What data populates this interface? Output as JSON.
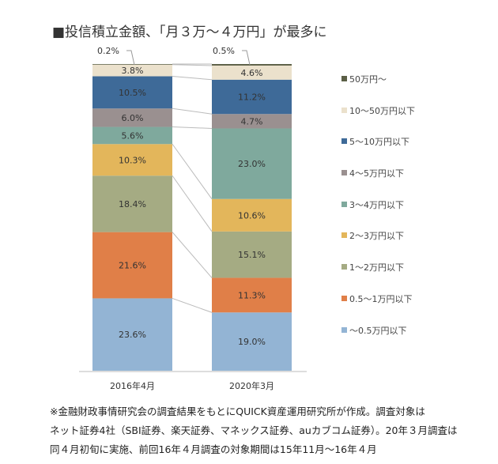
{
  "title": "■投信積立金額、「月３万～４万円」が最多に",
  "chart_data": {
    "type": "bar",
    "stacked": true,
    "percent": true,
    "categories": [
      "2016年4月",
      "2020年3月"
    ],
    "series": [
      {
        "name": "～0.5万円以下",
        "color": "#93b4d4",
        "values": [
          23.6,
          19.0
        ],
        "labels": [
          "23.6%",
          "19.0%"
        ]
      },
      {
        "name": "0.5～1万円以下",
        "color": "#e07f48",
        "values": [
          21.6,
          11.3
        ],
        "labels": [
          "21.6%",
          "11.3%"
        ]
      },
      {
        "name": "1～2万円以下",
        "color": "#a5ab83",
        "values": [
          18.4,
          15.1
        ],
        "labels": [
          "18.4%",
          "15.1%"
        ]
      },
      {
        "name": "2～3万円以下",
        "color": "#e3b65b",
        "values": [
          10.3,
          10.6
        ],
        "labels": [
          "10.3%",
          "10.6%"
        ]
      },
      {
        "name": "3～4万円以下",
        "color": "#7fa99d",
        "values": [
          5.6,
          23.0
        ],
        "labels": [
          "5.6%",
          "23.0%"
        ]
      },
      {
        "name": "4～5万円以下",
        "color": "#9a9090",
        "values": [
          6.0,
          4.7
        ],
        "labels": [
          "6.0%",
          "4.7%"
        ]
      },
      {
        "name": "5～10万円以下",
        "color": "#3e6a98",
        "values": [
          10.5,
          11.2
        ],
        "labels": [
          "10.5%",
          "11.2%"
        ]
      },
      {
        "name": "10～50万円以下",
        "color": "#ebe1cc",
        "values": [
          3.8,
          4.6
        ],
        "labels": [
          "3.8%",
          "4.6%"
        ]
      },
      {
        "name": "50万円～",
        "color": "#5b5f46",
        "values": [
          0.2,
          0.5
        ],
        "labels": [
          "0.2%",
          "0.5%"
        ]
      }
    ],
    "ylim": [
      0,
      100
    ],
    "legend": "right"
  },
  "note": [
    "※金融財政事情研究会の調査結果をもとにQUICK資産運用研究所が作成。調査対象は",
    "ネット証券4社（SBI証券、楽天証券、マネックス証券、auカブコム証券）。20年３月調査は",
    "同４月初旬に実施、前回16年４月調査の対象期間は15年11月～16年４月"
  ]
}
